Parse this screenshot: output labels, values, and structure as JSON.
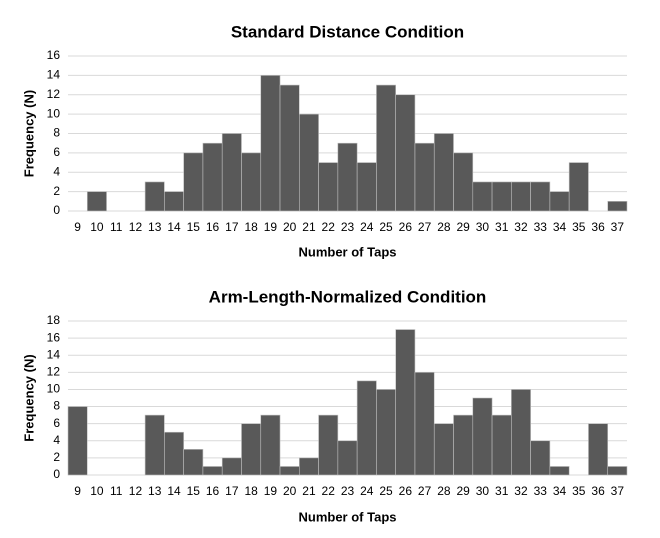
{
  "chart_data": [
    {
      "type": "bar",
      "title": "Standard Distance Condition",
      "x_label": "Number of Taps",
      "y_label": "Frequency (N)",
      "categories": [
        "9",
        "10",
        "11",
        "12",
        "13",
        "14",
        "15",
        "16",
        "17",
        "18",
        "19",
        "20",
        "21",
        "22",
        "23",
        "24",
        "25",
        "26",
        "27",
        "28",
        "29",
        "30",
        "31",
        "32",
        "33",
        "34",
        "35",
        "36",
        "37"
      ],
      "values": [
        0,
        2,
        0,
        0,
        3,
        2,
        6,
        7,
        8,
        6,
        14,
        13,
        10,
        5,
        7,
        5,
        13,
        12,
        7,
        8,
        6,
        3,
        3,
        3,
        3,
        2,
        5,
        0,
        1
      ],
      "color": "#595959",
      "ylim": [
        0,
        16
      ],
      "yticks": [
        0,
        2,
        4,
        6,
        8,
        10,
        12,
        14,
        16
      ],
      "grid": true
    },
    {
      "type": "bar",
      "title": "Arm-Length-Normalized Condition",
      "x_label": "Number of Taps",
      "y_label": "Frequency (N)",
      "categories": [
        "9",
        "10",
        "11",
        "12",
        "13",
        "14",
        "15",
        "16",
        "17",
        "18",
        "19",
        "20",
        "21",
        "22",
        "23",
        "24",
        "25",
        "26",
        "27",
        "28",
        "29",
        "30",
        "31",
        "32",
        "33",
        "34",
        "35",
        "36",
        "37"
      ],
      "values": [
        8,
        0,
        0,
        0,
        7,
        5,
        3,
        1,
        2,
        6,
        7,
        1,
        2,
        7,
        4,
        11,
        10,
        17,
        12,
        6,
        7,
        9,
        7,
        10,
        4,
        1,
        0,
        6,
        1
      ],
      "color": "#595959",
      "ylim": [
        0,
        18
      ],
      "yticks": [
        0,
        2,
        4,
        6,
        8,
        10,
        12,
        14,
        16,
        18
      ],
      "grid": true
    }
  ]
}
